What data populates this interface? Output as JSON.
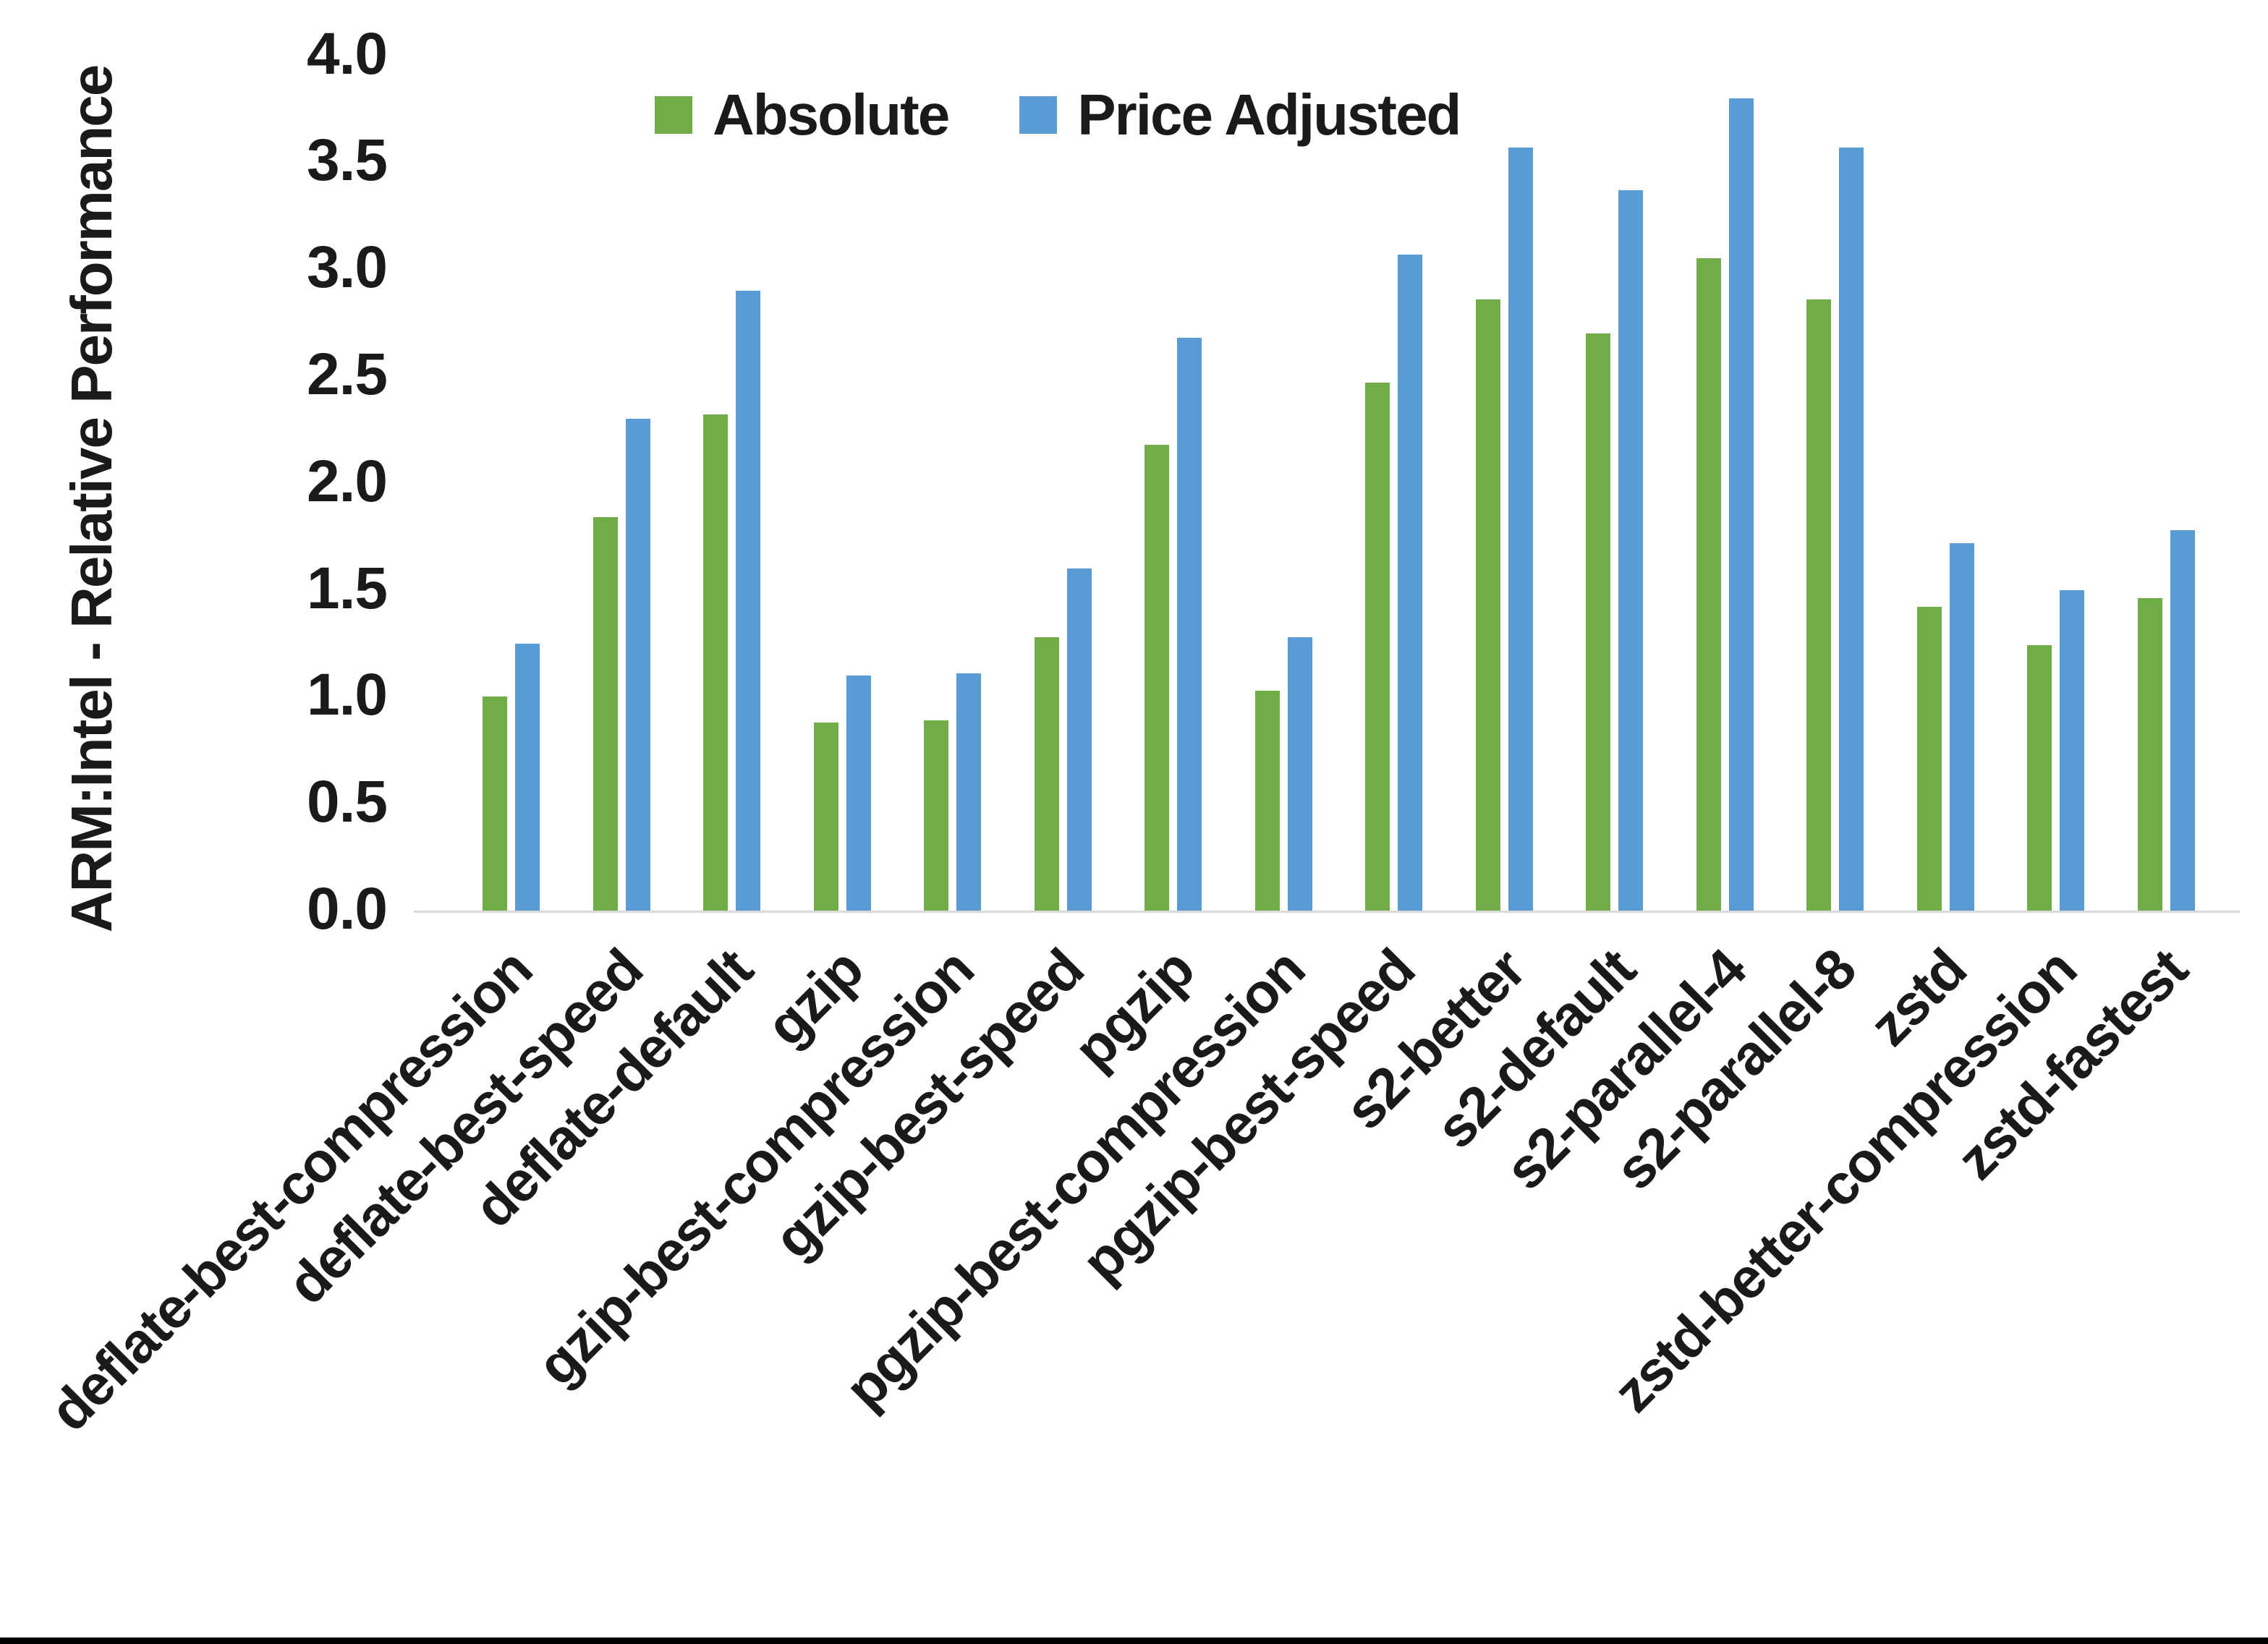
{
  "chart_data": {
    "type": "bar",
    "title": "",
    "xlabel": "",
    "ylabel": "ARM:Intel - Relative Performance",
    "ylim": [
      0.0,
      4.0
    ],
    "y_ticks": [
      "0.0",
      "0.5",
      "1.0",
      "1.5",
      "2.0",
      "2.5",
      "3.0",
      "3.5",
      "4.0"
    ],
    "grid": false,
    "legend_position": "top-center",
    "categories": [
      "deflate-best-compression",
      "deflate-best-speed",
      "deflate-default",
      "gzip",
      "gzip-best-compression",
      "gzip-best-speed",
      "pgzip",
      "pgzip-best-compression",
      "pgzip-best-speed",
      "s2-better",
      "s2-default",
      "s2-parallel-4",
      "s2-parallel-8",
      "zstd",
      "zstd-better-compression",
      "zstd-fastest"
    ],
    "series": [
      {
        "name": "Absolute",
        "color": "#70AD47",
        "values": [
          1.0,
          1.84,
          2.32,
          0.88,
          0.89,
          1.28,
          2.18,
          1.03,
          2.47,
          2.86,
          2.7,
          3.05,
          2.86,
          1.42,
          1.24,
          1.46
        ]
      },
      {
        "name": "Price Adjusted",
        "color": "#5B9BD5",
        "values": [
          1.25,
          2.3,
          2.9,
          1.1,
          1.11,
          1.6,
          2.68,
          1.28,
          3.07,
          3.57,
          3.37,
          3.8,
          3.57,
          1.72,
          1.5,
          1.78
        ]
      }
    ]
  }
}
